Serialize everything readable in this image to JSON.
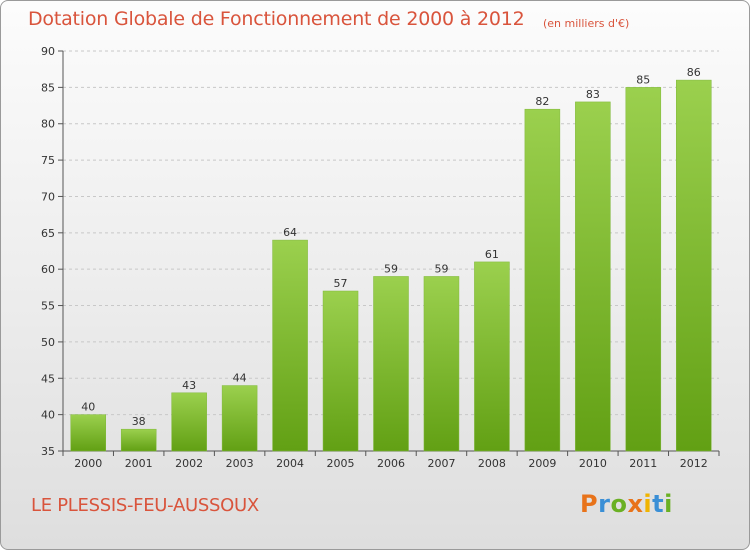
{
  "header": {
    "title": "Dotation Globale de Fonctionnement de 2000 à 2012",
    "unit": "(en milliers d'€)"
  },
  "footer": {
    "town": "LE PLESSIS-FEU-AUSSOUX",
    "logo": {
      "chars": [
        "P",
        "r",
        "o",
        "x",
        "i",
        "t",
        "i"
      ],
      "colors": [
        "#e8731a",
        "#3a8fd6",
        "#6ab023",
        "#e8731a",
        "#f0b400",
        "#3a8fd6",
        "#6ab023"
      ]
    }
  },
  "colors": {
    "title": "#d9543c",
    "bar_top": "#9bd04e",
    "bar_bottom": "#62a014"
  },
  "chart_data": {
    "type": "bar",
    "title": "Dotation Globale de Fonctionnement de 2000 à 2012",
    "subtitle": "(en milliers d'€)",
    "categories": [
      "2000",
      "2001",
      "2002",
      "2003",
      "2004",
      "2005",
      "2006",
      "2007",
      "2008",
      "2009",
      "2010",
      "2011",
      "2012"
    ],
    "values": [
      40,
      38,
      43,
      44,
      64,
      57,
      59,
      59,
      61,
      82,
      83,
      85,
      86
    ],
    "ylim": [
      35,
      90
    ],
    "yticks": [
      35,
      40,
      45,
      50,
      55,
      60,
      65,
      70,
      75,
      80,
      85,
      90
    ],
    "grid": true,
    "legend": "none"
  }
}
